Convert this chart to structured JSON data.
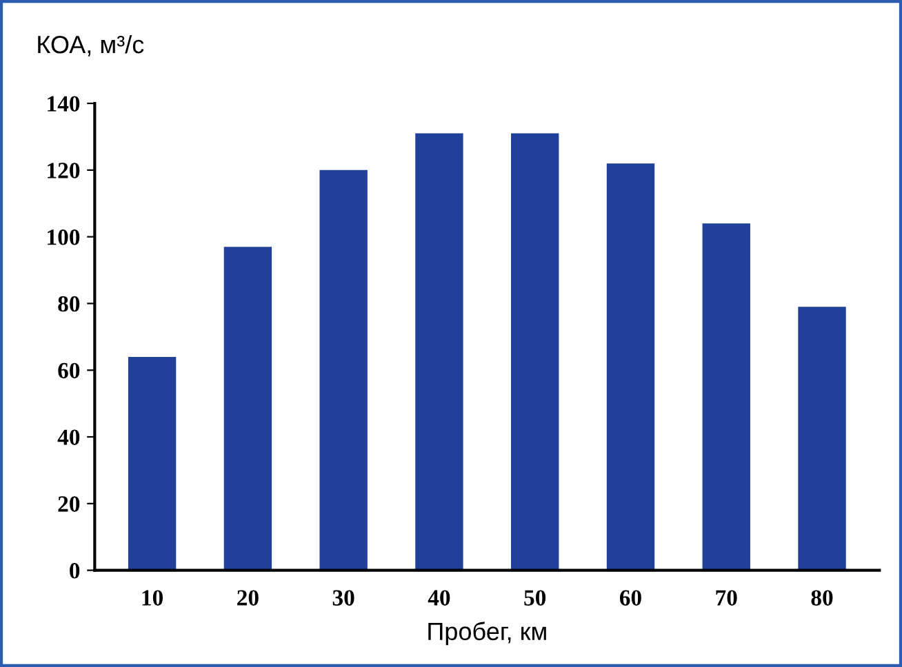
{
  "chart_data": {
    "type": "bar",
    "ylabel": "КОА, м³/с",
    "xlabel": "Пробег, км",
    "categories": [
      "10",
      "20",
      "30",
      "40",
      "50",
      "60",
      "70",
      "80"
    ],
    "values": [
      64,
      97,
      120,
      131,
      131,
      122,
      104,
      79
    ],
    "color": "#21409a",
    "ylim": [
      0,
      140
    ],
    "yticks": [
      0,
      20,
      40,
      60,
      80,
      100,
      120,
      140
    ],
    "grid": false,
    "legend": false
  }
}
